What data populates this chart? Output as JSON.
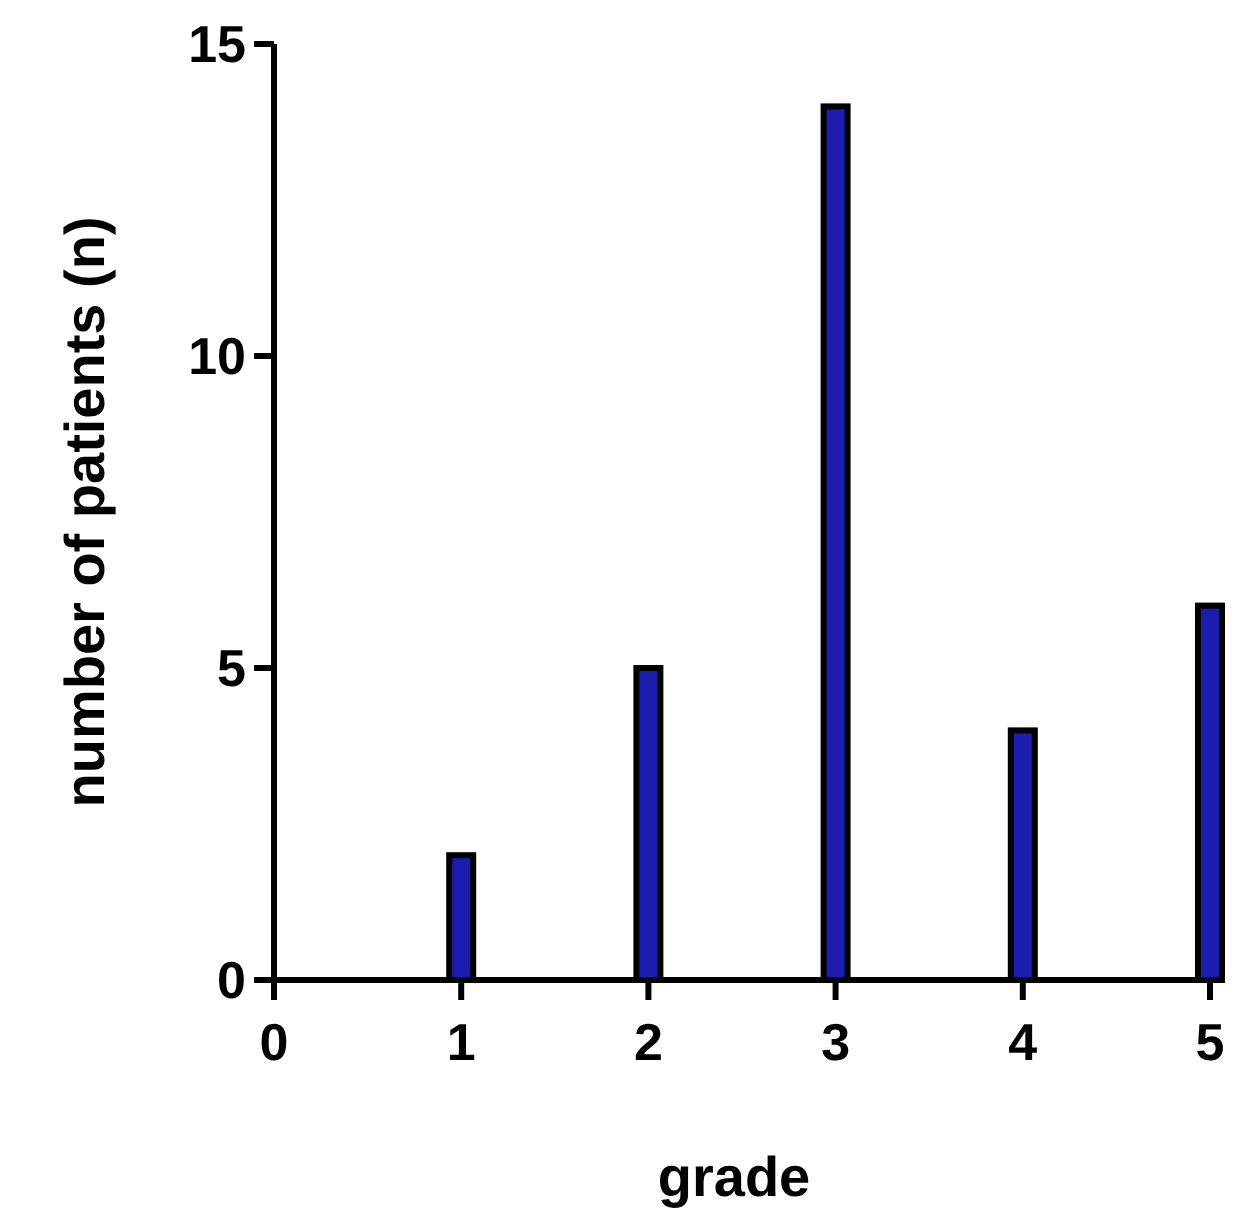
{
  "chart_data": {
    "type": "bar",
    "xlabel": "grade",
    "ylabel": "number of patients (n)",
    "x": [
      1,
      2,
      3,
      4,
      5
    ],
    "values": [
      2,
      5,
      14,
      4,
      6
    ],
    "color": "#1c1cb0",
    "xlim": [
      0,
      5
    ],
    "xticks": [
      0,
      1,
      2,
      3,
      4,
      5
    ],
    "ylim": [
      0,
      15
    ],
    "yticks": [
      0,
      5,
      10,
      15
    ],
    "grid": false
  }
}
